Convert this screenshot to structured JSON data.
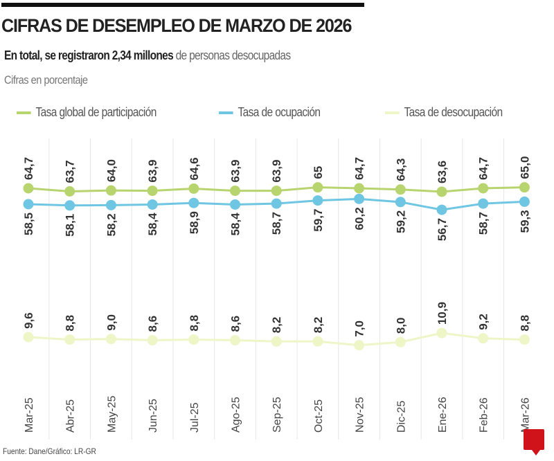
{
  "header": {
    "title": "CIFRAS DE DESEMPLEO DE MARZO DE 2026",
    "subtitle_bold": "En total, se registraron 2,34 millones",
    "subtitle_rest": " de personas desocupadas",
    "unit": "Cifras en porcentaje"
  },
  "footer": {
    "source": "Fuente: Dane/Gráfico: LR-GR",
    "logo": "LR"
  },
  "colors": {
    "participacion": "#b8d46e",
    "ocupacion": "#6fc6e2",
    "desocupacion": "#eef5c6"
  },
  "chart_data": {
    "type": "line",
    "categories": [
      "Mar-25",
      "Abr-25",
      "May-25",
      "Jun-25",
      "Jul-25",
      "Ago-25",
      "Sep-25",
      "Oct-25",
      "Nov-25",
      "Dic-25",
      "Ene-26",
      "Feb-26",
      "Mar-26"
    ],
    "legend_position": "top",
    "grid": "vertical",
    "series": [
      {
        "name": "Tasa global de participación",
        "values": [
          64.7,
          63.7,
          64.0,
          63.9,
          64.6,
          63.9,
          63.9,
          65,
          64.7,
          64.3,
          63.6,
          64.7,
          65.0
        ],
        "labels": [
          "64,7",
          "63,7",
          "64,0",
          "63,9",
          "64,6",
          "63,9",
          "63,9",
          "65",
          "64,7",
          "64,3",
          "63,6",
          "64,7",
          "65,0"
        ]
      },
      {
        "name": "Tasa de ocupación",
        "values": [
          58.5,
          58.1,
          58.2,
          58.4,
          58.9,
          58.4,
          58.7,
          59.7,
          60.2,
          59.2,
          56.7,
          58.7,
          59.3
        ],
        "labels": [
          "58,5",
          "58,1",
          "58,2",
          "58,4",
          "58,9",
          "58,4",
          "58,7",
          "59,7",
          "60,2",
          "59,2",
          "56,7",
          "58,7",
          "59,3"
        ]
      },
      {
        "name": "Tasa de desocupación",
        "values": [
          9.6,
          8.8,
          9.0,
          8.6,
          8.8,
          8.6,
          8.2,
          8.2,
          7.0,
          8.0,
          10.9,
          9.2,
          8.8
        ],
        "labels": [
          "9,6",
          "8,8",
          "9,0",
          "8,6",
          "8,8",
          "8,6",
          "8,2",
          "8,2",
          "7,0",
          "8,0",
          "10,9",
          "9,2",
          "8,8"
        ]
      }
    ]
  }
}
